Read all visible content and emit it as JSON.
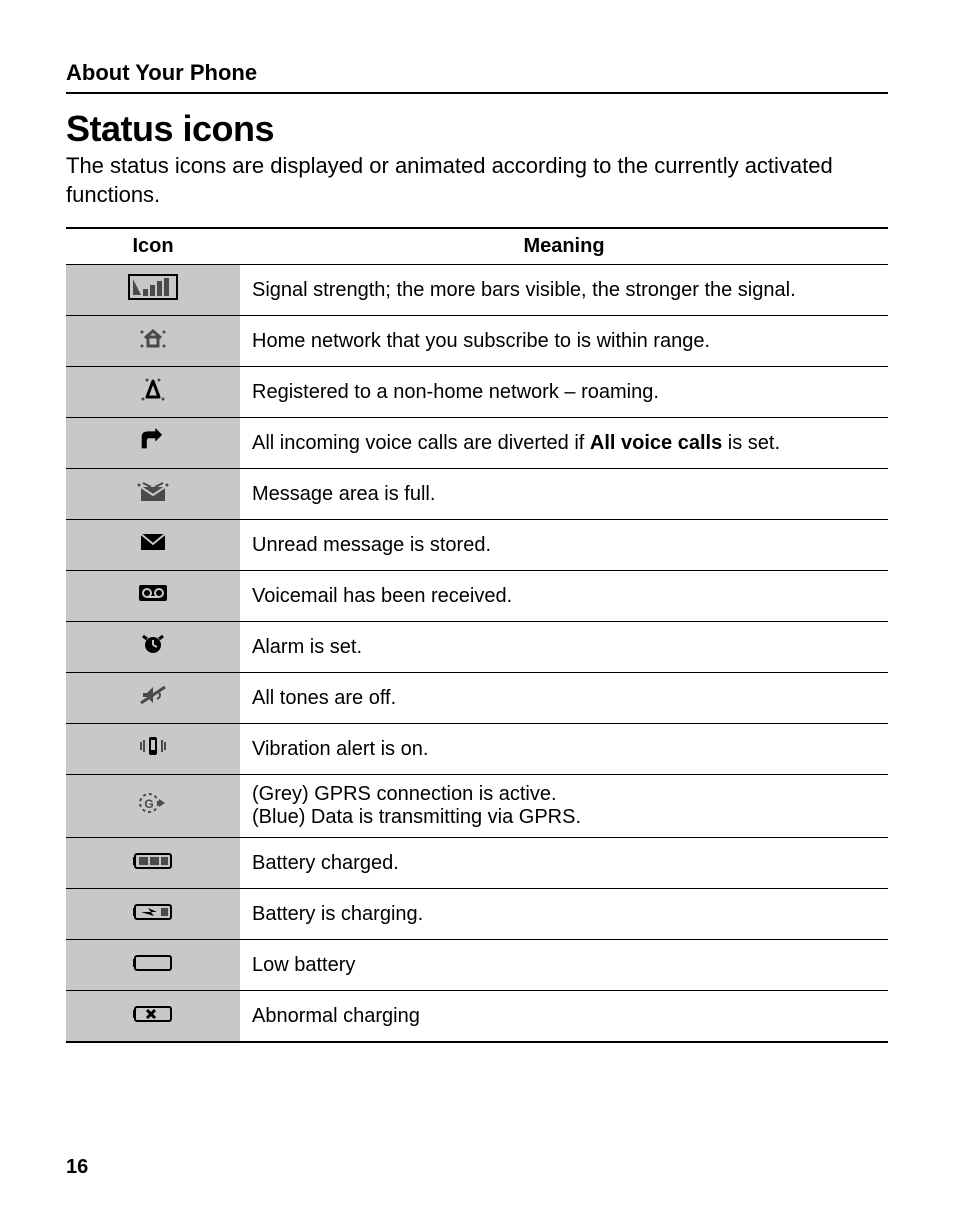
{
  "section_title": "About Your Phone",
  "main_heading": "Status icons",
  "intro_text": "The status icons are displayed or animated according to the currently activated functions.",
  "table": {
    "headers": {
      "icon": "Icon",
      "meaning": "Meaning"
    },
    "rows": [
      {
        "icon": "signal-strength-icon",
        "meaning_html": "Signal strength; the more bars visible, the stronger the signal."
      },
      {
        "icon": "home-network-icon",
        "meaning_html": "Home network that you subscribe to is within range."
      },
      {
        "icon": "roaming-icon",
        "meaning_html": "Registered to a non-home network – roaming."
      },
      {
        "icon": "divert-calls-icon",
        "meaning_html": "All incoming voice calls are diverted if <b>All voice calls</b> is set."
      },
      {
        "icon": "message-full-icon",
        "meaning_html": "Message area is full."
      },
      {
        "icon": "unread-message-icon",
        "meaning_html": "Unread message is stored."
      },
      {
        "icon": "voicemail-icon",
        "meaning_html": "Voicemail has been received."
      },
      {
        "icon": "alarm-icon",
        "meaning_html": "Alarm is set."
      },
      {
        "icon": "tones-off-icon",
        "meaning_html": "All tones are off."
      },
      {
        "icon": "vibration-icon",
        "meaning_html": "Vibration alert is on."
      },
      {
        "icon": "gprs-icon",
        "meaning_html": "(Grey) GPRS connection is active.<br>(Blue) Data is transmitting via GPRS."
      },
      {
        "icon": "battery-charged-icon",
        "meaning_html": "Battery charged."
      },
      {
        "icon": "battery-charging-icon",
        "meaning_html": "Battery is charging."
      },
      {
        "icon": "low-battery-icon",
        "meaning_html": "Low battery"
      },
      {
        "icon": "abnormal-charging-icon",
        "meaning_html": "Abnormal charging"
      }
    ]
  },
  "page_number": "16",
  "icon_colors": {
    "cell_bg": "#c8c8c8",
    "icon_dark": "#4a4a4a",
    "icon_black": "#000000",
    "icon_frame": "#000000"
  }
}
